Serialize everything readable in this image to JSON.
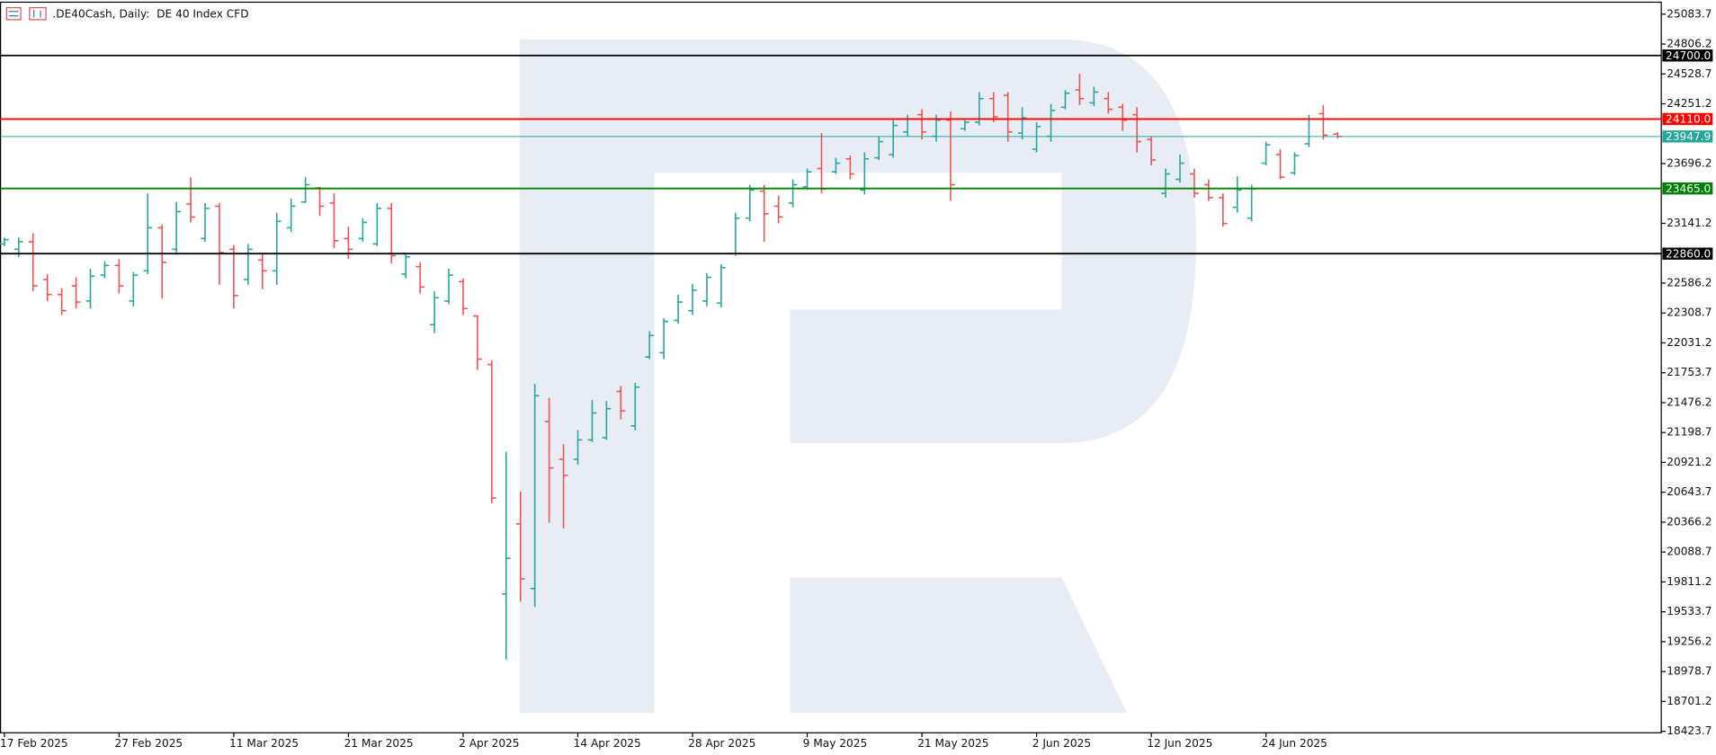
{
  "chart_data": {
    "type": "ohlc",
    "title": ".DE40Cash, Daily:  DE 40 Index CFD",
    "categories": [
      "17 Feb 2025",
      null,
      null,
      null,
      null,
      null,
      null,
      null,
      "27 Feb 2025",
      null,
      null,
      null,
      null,
      null,
      null,
      null,
      "11 Mar 2025",
      null,
      null,
      null,
      null,
      null,
      null,
      null,
      "21 Mar 2025",
      null,
      null,
      null,
      null,
      null,
      null,
      null,
      "2 Apr 2025",
      null,
      null,
      null,
      null,
      null,
      null,
      null,
      "14 Apr 2025",
      null,
      null,
      null,
      null,
      null,
      null,
      null,
      "28 Apr 2025",
      null,
      null,
      null,
      null,
      null,
      null,
      null,
      "9 May 2025",
      null,
      null,
      null,
      null,
      null,
      null,
      null,
      "21 May 2025",
      null,
      null,
      null,
      null,
      null,
      null,
      null,
      "2 Jun 2025",
      null,
      null,
      null,
      null,
      null,
      null,
      null,
      "12 Jun 2025",
      null,
      null,
      null,
      null,
      null,
      null,
      null,
      "24 Jun 2025",
      null,
      null,
      null,
      null,
      null
    ],
    "open": [
      22950,
      22900,
      22970,
      22620,
      22480,
      22560,
      22420,
      22660,
      22750,
      22420,
      22700,
      23100,
      22900,
      23320,
      23000,
      23300,
      22900,
      22620,
      22800,
      22700,
      23100,
      23340,
      23470,
      23330,
      23000,
      23000,
      22950,
      23280,
      22670,
      22740,
      22200,
      22420,
      22600,
      22280,
      21830,
      19700,
      20350,
      19750,
      21300,
      20950,
      20950,
      21130,
      21150,
      21580,
      21260,
      21900,
      21940,
      22240,
      22330,
      22420,
      22400,
      22860,
      23190,
      23440,
      23300,
      23330,
      23480,
      23650,
      23620,
      23740,
      23450,
      23750,
      23780,
      23990,
      24150,
      23950,
      24100,
      24020,
      24080,
      24300,
      24330,
      23980,
      23830,
      23950,
      24220,
      24380,
      24260,
      24300,
      24220,
      24150,
      23920,
      23420,
      23550,
      23600,
      23500,
      23380,
      23290,
      23190,
      23700,
      23780,
      23610,
      23880,
      24160,
      23970
    ],
    "high": [
      23010,
      23010,
      23050,
      22670,
      22540,
      22640,
      22720,
      22790,
      22810,
      22690,
      23420,
      23130,
      23340,
      23570,
      23330,
      23330,
      22940,
      22950,
      22870,
      23240,
      23370,
      23570,
      23480,
      23420,
      23110,
      23190,
      23330,
      23330,
      22870,
      22780,
      22510,
      22720,
      22630,
      22290,
      21870,
      21020,
      20650,
      21650,
      21520,
      21090,
      21220,
      21500,
      21490,
      21630,
      21660,
      22140,
      22260,
      22480,
      22580,
      22680,
      22760,
      23240,
      23500,
      23500,
      23400,
      23550,
      23650,
      23980,
      23750,
      23770,
      23800,
      23950,
      24100,
      24150,
      24200,
      24150,
      24180,
      24100,
      24360,
      24360,
      24360,
      24220,
      24080,
      24250,
      24380,
      24530,
      24410,
      24360,
      24250,
      24220,
      23950,
      23650,
      23780,
      23650,
      23550,
      23420,
      23580,
      23500,
      23900,
      23830,
      23800,
      24150,
      24240,
      23990
    ],
    "low": [
      22930,
      22830,
      22510,
      22420,
      22290,
      22350,
      22350,
      22630,
      22490,
      22370,
      22670,
      22440,
      22870,
      23150,
      22970,
      22570,
      22350,
      22570,
      22530,
      22570,
      23060,
      23330,
      23210,
      22910,
      22810,
      22970,
      22930,
      22770,
      22630,
      22490,
      22120,
      22390,
      22290,
      21780,
      20540,
      19090,
      19630,
      19580,
      20360,
      20310,
      20900,
      21110,
      21130,
      21320,
      21220,
      21880,
      21880,
      22210,
      22290,
      22370,
      22360,
      22840,
      23160,
      22970,
      23140,
      23290,
      23450,
      23420,
      23600,
      23550,
      23410,
      23730,
      23750,
      23950,
      23920,
      23900,
      23350,
      24000,
      24050,
      24080,
      23900,
      23920,
      23800,
      23900,
      24200,
      24240,
      24230,
      24160,
      24000,
      23800,
      23680,
      23380,
      23520,
      23380,
      23350,
      23110,
      23240,
      23160,
      23680,
      23550,
      23590,
      23850,
      23920,
      23930
    ],
    "close": [
      22990,
      22970,
      22560,
      22480,
      22330,
      22410,
      22650,
      22750,
      22560,
      22660,
      23100,
      22780,
      23250,
      23200,
      23280,
      22870,
      22470,
      22900,
      22700,
      23160,
      23300,
      23500,
      23300,
      22980,
      22900,
      23150,
      23280,
      22840,
      22830,
      22550,
      22450,
      22660,
      22350,
      21880,
      20590,
      20030,
      19840,
      21540,
      20870,
      20800,
      21130,
      21380,
      21420,
      21400,
      21620,
      22100,
      22230,
      22410,
      22520,
      22640,
      22730,
      23190,
      23450,
      23230,
      23200,
      23500,
      23620,
      23460,
      23700,
      23600,
      23740,
      23900,
      24050,
      24110,
      23990,
      24100,
      23500,
      24080,
      24300,
      24130,
      23990,
      24120,
      24040,
      24190,
      24350,
      24300,
      24360,
      24200,
      24100,
      23900,
      23730,
      23600,
      23700,
      23420,
      23380,
      23140,
      23450,
      23460,
      23870,
      23570,
      23770,
      24110,
      23960,
      23947.9
    ],
    "up_color": "#26a69a",
    "down_color": "#ef5350",
    "ylim": [
      18410,
      25195
    ],
    "yticks": [
      25083.7,
      24806.2,
      24528.7,
      24251.2,
      23696.2,
      23141.2,
      22586.2,
      22308.7,
      22031.2,
      21753.7,
      21476.2,
      21198.7,
      20921.2,
      20643.7,
      20366.2,
      20088.7,
      19811.2,
      19533.7,
      19256.2,
      18978.7,
      18701.2,
      18423.7
    ],
    "levels": [
      {
        "value": 24700,
        "label": "24700.0",
        "color": "#000000"
      },
      {
        "value": 24110,
        "label": "24110.0",
        "color": "#ff0000"
      },
      {
        "value": 23947.9,
        "label": "23947.9",
        "color": "#26a69a"
      },
      {
        "value": 23465,
        "label": "23465.0",
        "color": "#008000"
      },
      {
        "value": 22860,
        "label": "22860.0",
        "color": "#000000"
      }
    ]
  }
}
